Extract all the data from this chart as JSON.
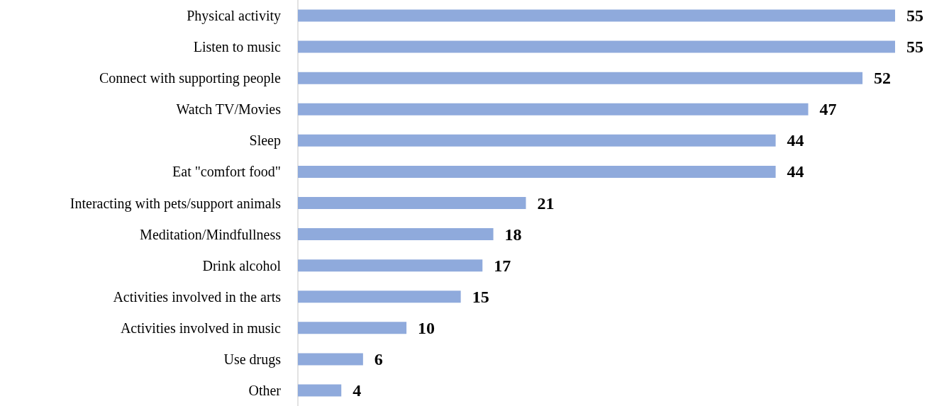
{
  "chart_data": {
    "type": "bar",
    "orientation": "horizontal",
    "categories": [
      "Physical activity",
      "Listen to music",
      "Connect with supporting people",
      "Watch TV/Movies",
      "Sleep",
      "Eat \"comfort food\"",
      "Interacting with pets/support animals",
      "Meditation/Mindfullness",
      "Drink alcohol",
      "Activities involved in the arts",
      "Activities involved in music",
      "Use drugs",
      "Other"
    ],
    "values": [
      55,
      55,
      52,
      47,
      44,
      44,
      21,
      18,
      17,
      15,
      10,
      6,
      4
    ],
    "color": "#8faadc",
    "data_labels": true,
    "tick_labels": "y"
  }
}
